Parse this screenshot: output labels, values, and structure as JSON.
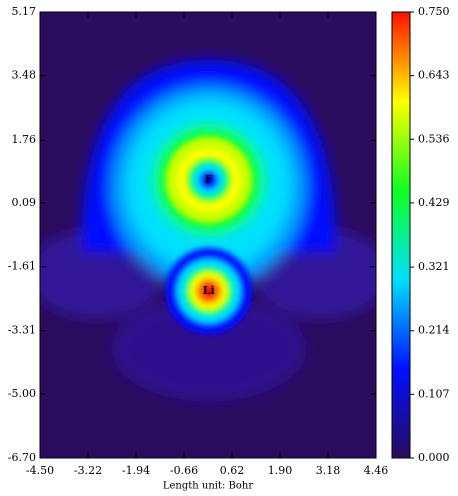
{
  "chart_data": {
    "type": "heatmap",
    "x_label": "Length unit: Bohr",
    "xlim": [
      -4.5,
      4.46
    ],
    "ylim": [
      -6.7,
      5.17
    ],
    "xticks": [
      {
        "value": -4.5,
        "label": "-4.50"
      },
      -3.22,
      -1.94,
      -0.66,
      0.62,
      {
        "value": 1.9,
        "label": "1.90"
      },
      3.18,
      4.46
    ],
    "yticks": [
      {
        "value": -6.7,
        "label": "-6.70"
      },
      {
        "value": -5.0,
        "label": "-5.00"
      },
      -3.31,
      -1.61,
      0.09,
      1.76,
      3.48,
      5.17
    ],
    "colorbar": {
      "lim": [
        0,
        0.75
      ],
      "ticks": [
        {
          "value": 0,
          "label": "0.000"
        },
        0.107,
        0.214,
        0.321,
        0.429,
        0.536,
        0.643,
        {
          "value": 0.75,
          "label": "0.750"
        }
      ],
      "colormap": [
        "#2a0c5e",
        "#0010ff",
        "#00e0ff",
        "#10ff20",
        "#ffff00",
        "#ff1000"
      ]
    },
    "atoms": [
      {
        "label": "F",
        "x": 0,
        "y": 0.7
      },
      {
        "label": "Li",
        "x": 0,
        "y": -2.26
      }
    ]
  }
}
